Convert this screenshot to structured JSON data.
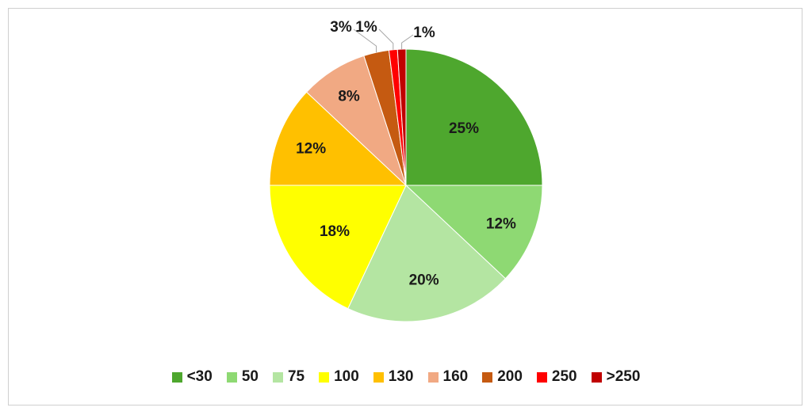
{
  "chart_data": {
    "type": "pie",
    "title": "",
    "categories": [
      "<30",
      "50",
      "75",
      "100",
      "130",
      "160",
      "200",
      "250",
      ">250"
    ],
    "values": [
      25,
      12,
      20,
      18,
      12,
      8,
      3,
      1,
      1
    ],
    "labels": [
      "25%",
      "12%",
      "20%",
      "18%",
      "12%",
      "8%",
      "3%",
      "1%",
      "1%"
    ],
    "colors": [
      "#4ea72e",
      "#8ed973",
      "#b4e5a2",
      "#ffff00",
      "#ffc000",
      "#f1a983",
      "#c55a11",
      "#ff0000",
      "#c00000"
    ],
    "legend_position": "bottom"
  }
}
